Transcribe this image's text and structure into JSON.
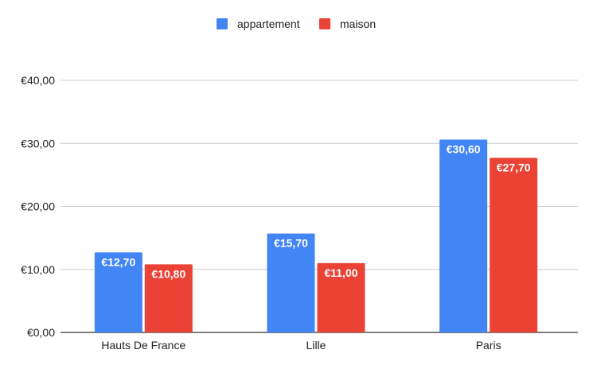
{
  "chart_data": {
    "type": "bar",
    "title": "",
    "xlabel": "",
    "ylabel": "",
    "categories": [
      "Hauts De France",
      "Lille",
      "Paris"
    ],
    "series": [
      {
        "name": "appartement",
        "values": [
          12.7,
          15.7,
          30.6
        ],
        "labels": [
          "€12,70",
          "€15,70",
          "€30,60"
        ],
        "color": "#4285F4"
      },
      {
        "name": "maison",
        "values": [
          10.8,
          11.0,
          27.7
        ],
        "labels": [
          "€10,80",
          "€11,00",
          "€27,70"
        ],
        "color": "#EA4335"
      }
    ],
    "ylim": [
      0,
      40
    ],
    "yticks": [
      0,
      10,
      20,
      30,
      40
    ],
    "ytick_labels": [
      "€0,00",
      "€10,00",
      "€20,00",
      "€30,00",
      "€40,00"
    ],
    "grid": true,
    "legend_position": "top"
  }
}
